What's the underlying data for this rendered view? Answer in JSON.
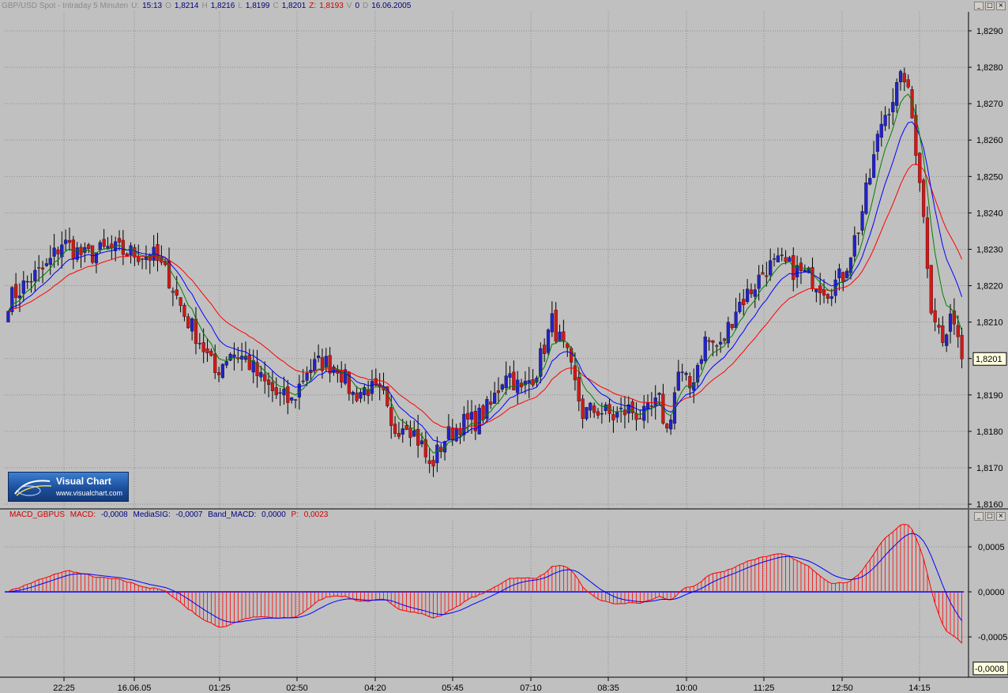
{
  "header": {
    "symbol": "GBP/USD Spot - Intraday 5 Minuten",
    "u_label": "U:",
    "time": "15:13",
    "o_label": "O",
    "open": "1,8214",
    "h_label": "H",
    "high": "1,8216",
    "l_label": "L",
    "low": "1,8199",
    "c_label": "C",
    "close": "1,8201",
    "z_label": "Z:",
    "change": "1,8193",
    "v_label": "V",
    "volume": "0",
    "d_label": "D",
    "date": "16.06.2005"
  },
  "macd_header": {
    "name": "MACD_GBPUS",
    "macd_label": "MACD:",
    "macd_value": "-0,0008",
    "sig_label": "MediaSIG:",
    "sig_value": "-0,0007",
    "band_label": "Band_MACD:",
    "band_value": "0,0000",
    "p_label": "P:",
    "p_value": "0,0023"
  },
  "window_buttons": [
    "_",
    "□",
    "×"
  ],
  "logo": {
    "title": "Visual Chart",
    "url": "www.visualchart.com"
  },
  "colors": {
    "background": "#c0c0c0",
    "bull": "#2222c8",
    "bear": "#d01818",
    "ma_fast": "#008000",
    "ma_mid": "#0000ff",
    "ma_slow": "#ff0000",
    "macd_hist": "#ff0000",
    "macd_signal": "#0000ff"
  },
  "chart_data": [
    {
      "type": "candlestick",
      "title": "GBP/USD Spot - Intraday 5 Minuten",
      "ylim": [
        1.816,
        1.8294
      ],
      "y_ticks": [
        "1,8290",
        "1,8280",
        "1,8270",
        "1,8260",
        "1,8250",
        "1,8240",
        "1,8230",
        "1,8220",
        "1,8210",
        "1,8200",
        "1,8190",
        "1,8180",
        "1,8170",
        "1,8160"
      ],
      "x_ticks": [
        "22:25",
        "16.06.05",
        "01:25",
        "02:50",
        "04:20",
        "05:45",
        "07:10",
        "08:35",
        "10:00",
        "11:25",
        "12:50",
        "14:15"
      ],
      "last_price_label": "1,8201",
      "grid": true,
      "moving_averages": [
        {
          "color": "green",
          "name": ""
        },
        {
          "color": "blue",
          "name": ""
        },
        {
          "color": "red",
          "name": ""
        }
      ]
    },
    {
      "type": "macd",
      "ylim": [
        -0.0011,
        0.0009
      ],
      "y_ticks": [
        "0,0005",
        "0,0000",
        "-0,0005"
      ],
      "last_value_label": "-0,0008",
      "grid": true
    }
  ]
}
